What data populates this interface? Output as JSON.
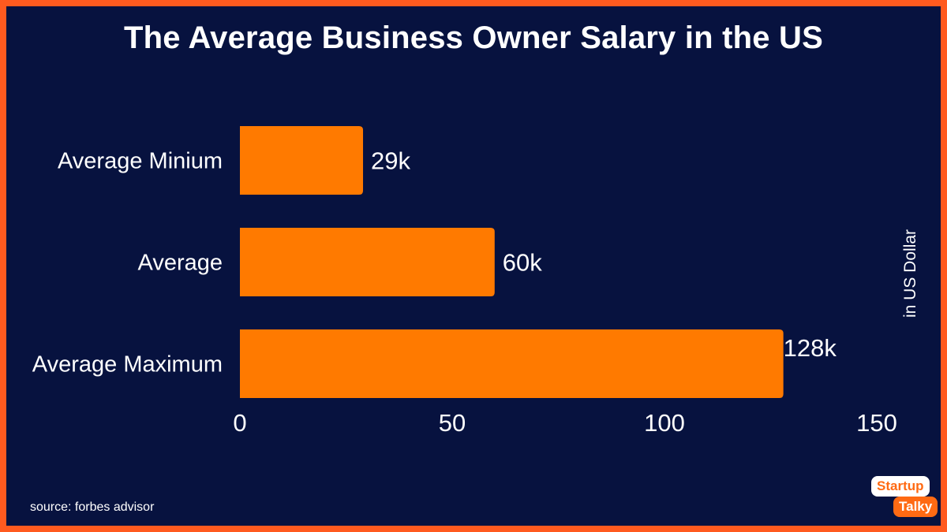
{
  "chart_data": {
    "type": "bar",
    "orientation": "horizontal",
    "title": "The Average Business Owner Salary in the US",
    "categories": [
      "Average Minium",
      "Average",
      "Average Maximum"
    ],
    "values": [
      29,
      60,
      128
    ],
    "value_labels": [
      "29k",
      "60k",
      "128k"
    ],
    "xlim": [
      0,
      150
    ],
    "xticks": [
      0,
      50,
      100,
      150
    ],
    "ylabel_right": "in US Dollar",
    "bar_color": "#ff7a00",
    "grid": false
  },
  "footer": {
    "source": "source: forbes advisor"
  },
  "logo": {
    "line1": "Startup",
    "line2": "Talky"
  },
  "colors": {
    "background": "#07123f",
    "border": "#ff5a1f",
    "text": "#ffffff"
  }
}
